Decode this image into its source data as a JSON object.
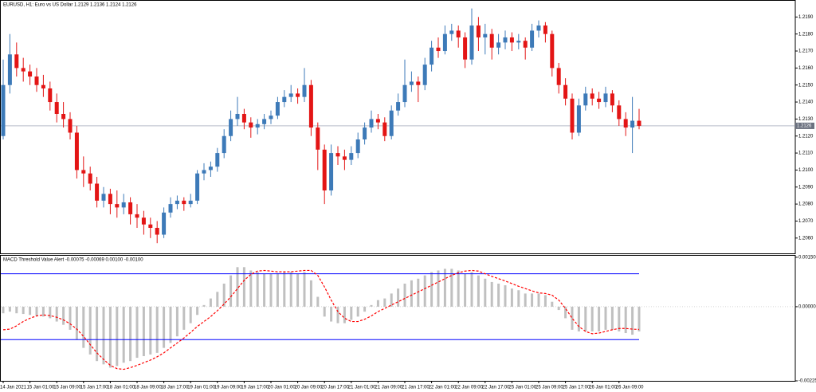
{
  "chart_data": [
    {
      "type": "candlestick",
      "title": "EURUSD, H1:  Euro vs US Dollar  1.2129 1.2136 1.2124 1.2126",
      "up_color": "#3d7ab8",
      "down_color": "#e31515",
      "ylim": [
        1.2051,
        1.22
      ],
      "yticks": [
        {
          "value": 1.206,
          "label": "1.2060"
        },
        {
          "value": 1.207,
          "label": "1.2070"
        },
        {
          "value": 1.208,
          "label": "1.2080"
        },
        {
          "value": 1.209,
          "label": "1.2090"
        },
        {
          "value": 1.21,
          "label": "1.2100"
        },
        {
          "value": 1.211,
          "label": "1.2110"
        },
        {
          "value": 1.212,
          "label": "1.2120"
        },
        {
          "value": 1.213,
          "label": "1.2130"
        },
        {
          "value": 1.214,
          "label": "1.2140"
        },
        {
          "value": 1.215,
          "label": "1.2150"
        },
        {
          "value": 1.216,
          "label": "1.2160"
        },
        {
          "value": 1.217,
          "label": "1.2170"
        },
        {
          "value": 1.218,
          "label": "1.2180"
        },
        {
          "value": 1.219,
          "label": "1.2190"
        }
      ],
      "price_line": 1.2126,
      "categories": [
        "14 Jan 2021",
        null,
        null,
        null,
        "15 Jan 01:00",
        null,
        null,
        null,
        "15 Jan 09:00",
        null,
        null,
        null,
        "15 Jan 17:00",
        null,
        null,
        null,
        "18 Jan 01:00",
        null,
        null,
        null,
        "18 Jan 09:00",
        null,
        null,
        null,
        "18 Jan 17:00",
        null,
        null,
        null,
        "19 Jan 01:00",
        null,
        null,
        null,
        "19 Jan 09:00",
        null,
        null,
        null,
        "19 Jan 17:00",
        null,
        null,
        null,
        "20 Jan 01:00",
        null,
        null,
        null,
        "20 Jan 09:00",
        null,
        null,
        null,
        "20 Jan 17:00",
        null,
        null,
        null,
        "21 Jan 01:00",
        null,
        null,
        null,
        "21 Jan 09:00",
        null,
        null,
        null,
        "21 Jan 17:00",
        null,
        null,
        null,
        "22 Jan 01:00",
        null,
        null,
        null,
        "22 Jan 09:00",
        null,
        null,
        null,
        "22 Jan 17:00",
        null,
        null,
        null,
        "25 Jan 01:00",
        null,
        null,
        null,
        "25 Jan 09:00",
        null,
        null,
        null,
        "25 Jan 17:00",
        null,
        null,
        null,
        "26 Jan 01:00",
        null,
        null,
        null,
        "26 Jan 09:00",
        null,
        null,
        null
      ],
      "ohlc": [
        [
          1.212,
          1.2165,
          1.2118,
          1.215
        ],
        [
          1.215,
          1.218,
          1.2145,
          1.2168
        ],
        [
          1.2168,
          1.2175,
          1.2155,
          1.216
        ],
        [
          1.216,
          1.2166,
          1.2152,
          1.2158
        ],
        [
          1.2158,
          1.2162,
          1.215,
          1.2155
        ],
        [
          1.2155,
          1.216,
          1.2146,
          1.215
        ],
        [
          1.215,
          1.2156,
          1.2143,
          1.2148
        ],
        [
          1.2148,
          1.2152,
          1.2135,
          1.214
        ],
        [
          1.214,
          1.2145,
          1.2128,
          1.2133
        ],
        [
          1.2133,
          1.214,
          1.2125,
          1.213
        ],
        [
          1.213,
          1.2134,
          1.2118,
          1.2122
        ],
        [
          1.2122,
          1.2126,
          1.2095,
          1.21
        ],
        [
          1.21,
          1.2108,
          1.209,
          1.2098
        ],
        [
          1.2098,
          1.2102,
          1.2088,
          1.2092
        ],
        [
          1.2092,
          1.2096,
          1.2078,
          1.2082
        ],
        [
          1.2082,
          1.209,
          1.2078,
          1.2086
        ],
        [
          1.2086,
          1.2089,
          1.2074,
          1.208
        ],
        [
          1.208,
          1.2088,
          1.2072,
          1.2078
        ],
        [
          1.2078,
          1.2086,
          1.2074,
          1.2081
        ],
        [
          1.2081,
          1.2084,
          1.2068,
          1.2074
        ],
        [
          1.2074,
          1.208,
          1.2066,
          1.2072
        ],
        [
          1.2072,
          1.2076,
          1.2062,
          1.2068
        ],
        [
          1.2068,
          1.2072,
          1.206,
          1.2066
        ],
        [
          1.2066,
          1.207,
          1.2057,
          1.2062
        ],
        [
          1.2062,
          1.2078,
          1.206,
          1.2075
        ],
        [
          1.2075,
          1.2084,
          1.2072,
          1.208
        ],
        [
          1.208,
          1.2085,
          1.2077,
          1.2082
        ],
        [
          1.2082,
          1.2084,
          1.2076,
          1.208
        ],
        [
          1.208,
          1.2086,
          1.2078,
          1.2082
        ],
        [
          1.2082,
          1.21,
          1.208,
          1.2098
        ],
        [
          1.2098,
          1.2104,
          1.2094,
          1.21
        ],
        [
          1.21,
          1.2105,
          1.2096,
          1.2102
        ],
        [
          1.2102,
          1.2113,
          1.2099,
          1.211
        ],
        [
          1.211,
          1.2124,
          1.2107,
          1.212
        ],
        [
          1.212,
          1.2135,
          1.2117,
          1.213
        ],
        [
          1.213,
          1.2143,
          1.2126,
          1.2133
        ],
        [
          1.2133,
          1.2136,
          1.2124,
          1.2128
        ],
        [
          1.2128,
          1.2131,
          1.2119,
          1.2125
        ],
        [
          1.2125,
          1.213,
          1.2121,
          1.2127
        ],
        [
          1.2127,
          1.2133,
          1.2124,
          1.213
        ],
        [
          1.213,
          1.2135,
          1.2127,
          1.2132
        ],
        [
          1.2132,
          1.2143,
          1.213,
          1.214
        ],
        [
          1.214,
          1.2147,
          1.2137,
          1.2143
        ],
        [
          1.2143,
          1.215,
          1.214,
          1.2145
        ],
        [
          1.2145,
          1.2148,
          1.2139,
          1.2143
        ],
        [
          1.2143,
          1.216,
          1.214,
          1.215
        ],
        [
          1.215,
          1.2153,
          1.212,
          1.2125
        ],
        [
          1.2125,
          1.2128,
          1.21,
          1.2112
        ],
        [
          1.2112,
          1.2115,
          1.208,
          1.2088
        ],
        [
          1.2088,
          1.2115,
          1.2085,
          1.211
        ],
        [
          1.211,
          1.2114,
          1.2103,
          1.2108
        ],
        [
          1.2108,
          1.2112,
          1.21,
          1.2106
        ],
        [
          1.2106,
          1.2114,
          1.2103,
          1.211
        ],
        [
          1.211,
          1.2122,
          1.2107,
          1.2118
        ],
        [
          1.2118,
          1.2128,
          1.2115,
          1.2125
        ],
        [
          1.2125,
          1.2135,
          1.2122,
          1.213
        ],
        [
          1.213,
          1.2133,
          1.2124,
          1.2128
        ],
        [
          1.2128,
          1.2131,
          1.2117,
          1.212
        ],
        [
          1.212,
          1.2138,
          1.2118,
          1.2135
        ],
        [
          1.2135,
          1.2145,
          1.2132,
          1.214
        ],
        [
          1.214,
          1.2165,
          1.2137,
          1.215
        ],
        [
          1.215,
          1.2158,
          1.2146,
          1.2152
        ],
        [
          1.2152,
          1.2155,
          1.214,
          1.215
        ],
        [
          1.215,
          1.2166,
          1.2147,
          1.2162
        ],
        [
          1.2162,
          1.2176,
          1.2158,
          1.2172
        ],
        [
          1.2172,
          1.2178,
          1.2166,
          1.217
        ],
        [
          1.217,
          1.2185,
          1.2168,
          1.218
        ],
        [
          1.218,
          1.2186,
          1.2176,
          1.2182
        ],
        [
          1.2182,
          1.2185,
          1.2172,
          1.2178
        ],
        [
          1.2178,
          1.2181,
          1.216,
          1.2165
        ],
        [
          1.2165,
          1.2195,
          1.2162,
          1.2185
        ],
        [
          1.2185,
          1.219,
          1.217,
          1.2178
        ],
        [
          1.2178,
          1.2186,
          1.2168,
          1.218
        ],
        [
          1.218,
          1.2183,
          1.2165,
          1.2172
        ],
        [
          1.2172,
          1.218,
          1.2168,
          1.2175
        ],
        [
          1.2175,
          1.2182,
          1.2171,
          1.2178
        ],
        [
          1.2178,
          1.2181,
          1.217,
          1.2175
        ],
        [
          1.2175,
          1.218,
          1.2171,
          1.2176
        ],
        [
          1.2176,
          1.2178,
          1.2165,
          1.2172
        ],
        [
          1.2172,
          1.2186,
          1.217,
          1.2182
        ],
        [
          1.2182,
          1.2188,
          1.2178,
          1.2185
        ],
        [
          1.2185,
          1.2187,
          1.2175,
          1.218
        ],
        [
          1.218,
          1.2182,
          1.2155,
          1.216
        ],
        [
          1.216,
          1.2163,
          1.2145,
          1.215
        ],
        [
          1.215,
          1.2154,
          1.2138,
          1.2142
        ],
        [
          1.2142,
          1.2145,
          1.2118,
          1.2122
        ],
        [
          1.2122,
          1.2142,
          1.212,
          1.2138
        ],
        [
          1.2138,
          1.2149,
          1.2135,
          1.2145
        ],
        [
          1.2145,
          1.2148,
          1.2138,
          1.2142
        ],
        [
          1.2142,
          1.2146,
          1.2136,
          1.214
        ],
        [
          1.214,
          1.2149,
          1.2137,
          1.2145
        ],
        [
          1.2145,
          1.2147,
          1.2134,
          1.2138
        ],
        [
          1.2138,
          1.2141,
          1.2126,
          1.213
        ],
        [
          1.213,
          1.2134,
          1.212,
          1.2125
        ],
        [
          1.2125,
          1.2143,
          1.211,
          1.2129
        ],
        [
          1.2129,
          1.2136,
          1.2124,
          1.2126
        ]
      ]
    },
    {
      "type": "macd",
      "title": "MACD Threshold Value Alert -0.00075 -0.00069 0.00100 -0.00100",
      "ylim": [
        -0.00225,
        0.00157
      ],
      "yticks": [
        {
          "value": 0.0015,
          "label": "0.00150"
        },
        {
          "value": 0,
          "label": "0.00000"
        },
        {
          "value": -0.00225,
          "label": "-0.00225"
        }
      ],
      "levels": [
        0.001,
        -0.001
      ],
      "level_color": "#0000ff",
      "histogram": {
        "color": "#c0c0c0",
        "values": [
          -0.0002,
          -0.00015,
          -0.0002,
          -0.00022,
          -0.00025,
          -0.00028,
          -0.0003,
          -0.00035,
          -0.00045,
          -0.00055,
          -0.0007,
          -0.001,
          -0.00125,
          -0.00145,
          -0.00165,
          -0.00175,
          -0.00185,
          -0.0018,
          -0.0017,
          -0.00165,
          -0.00155,
          -0.0015,
          -0.00145,
          -0.0014,
          -0.00125,
          -0.0011,
          -0.0009,
          -0.0007,
          -0.0005,
          -0.00025,
          5e-05,
          0.00025,
          0.00045,
          0.0007,
          0.00095,
          0.0012,
          0.0012,
          0.0011,
          0.00105,
          0.001,
          0.001,
          0.00102,
          0.00105,
          0.00105,
          0.001,
          0.00105,
          0.0008,
          0.0003,
          -0.0003,
          -0.00045,
          -0.0005,
          -0.0005,
          -0.0004,
          -0.0003,
          -0.00015,
          5e-05,
          0.0002,
          0.00025,
          0.0004,
          0.00055,
          0.0007,
          0.0008,
          0.00085,
          0.00095,
          0.00105,
          0.0011,
          0.00115,
          0.00115,
          0.0011,
          0.001,
          0.00105,
          0.00095,
          0.00085,
          0.00075,
          0.0007,
          0.00065,
          0.00055,
          0.0005,
          0.0004,
          0.0004,
          0.0004,
          0.00035,
          0.00015,
          -0.0001,
          -0.00035,
          -0.0007,
          -0.00075,
          -0.00075,
          -0.00075,
          -0.00075,
          -0.0007,
          -0.0007,
          -0.00075,
          -0.0008,
          -0.00085,
          -0.00075
        ]
      },
      "signal": {
        "color": "#ff0000",
        "values": [
          -0.0007,
          -0.00068,
          -0.00058,
          -0.00045,
          -0.00035,
          -0.00028,
          -0.00025,
          -0.00027,
          -0.00032,
          -0.0004,
          -0.00052,
          -0.00068,
          -0.0009,
          -0.00115,
          -0.0014,
          -0.0016,
          -0.00178,
          -0.00188,
          -0.0019,
          -0.00185,
          -0.00178,
          -0.0017,
          -0.00162,
          -0.00152,
          -0.0014,
          -0.00125,
          -0.0011,
          -0.00095,
          -0.00078,
          -0.0006,
          -0.00045,
          -0.0003,
          -0.00012,
          8e-05,
          0.0003,
          0.00055,
          0.0008,
          0.00098,
          0.00108,
          0.0011,
          0.00108,
          0.00106,
          0.00106,
          0.00106,
          0.00108,
          0.0011,
          0.0011,
          0.00095,
          0.0006,
          0.0002,
          -0.00015,
          -0.00035,
          -0.00045,
          -0.00045,
          -0.00038,
          -0.00028,
          -0.00015,
          -5e-05,
          5e-05,
          0.00015,
          0.00025,
          0.00035,
          0.00045,
          0.00055,
          0.00065,
          0.00075,
          0.00085,
          0.00095,
          0.00103,
          0.00108,
          0.0011,
          0.00108,
          0.001,
          0.00092,
          0.00085,
          0.00078,
          0.0007,
          0.00062,
          0.00055,
          0.00048,
          0.00042,
          0.0004,
          0.00035,
          0.0002,
          -5e-05,
          -0.00035,
          -0.0006,
          -0.00075,
          -0.00082,
          -0.0008,
          -0.00075,
          -0.0007,
          -0.00066,
          -0.00066,
          -0.00068,
          -0.00069
        ]
      }
    }
  ]
}
